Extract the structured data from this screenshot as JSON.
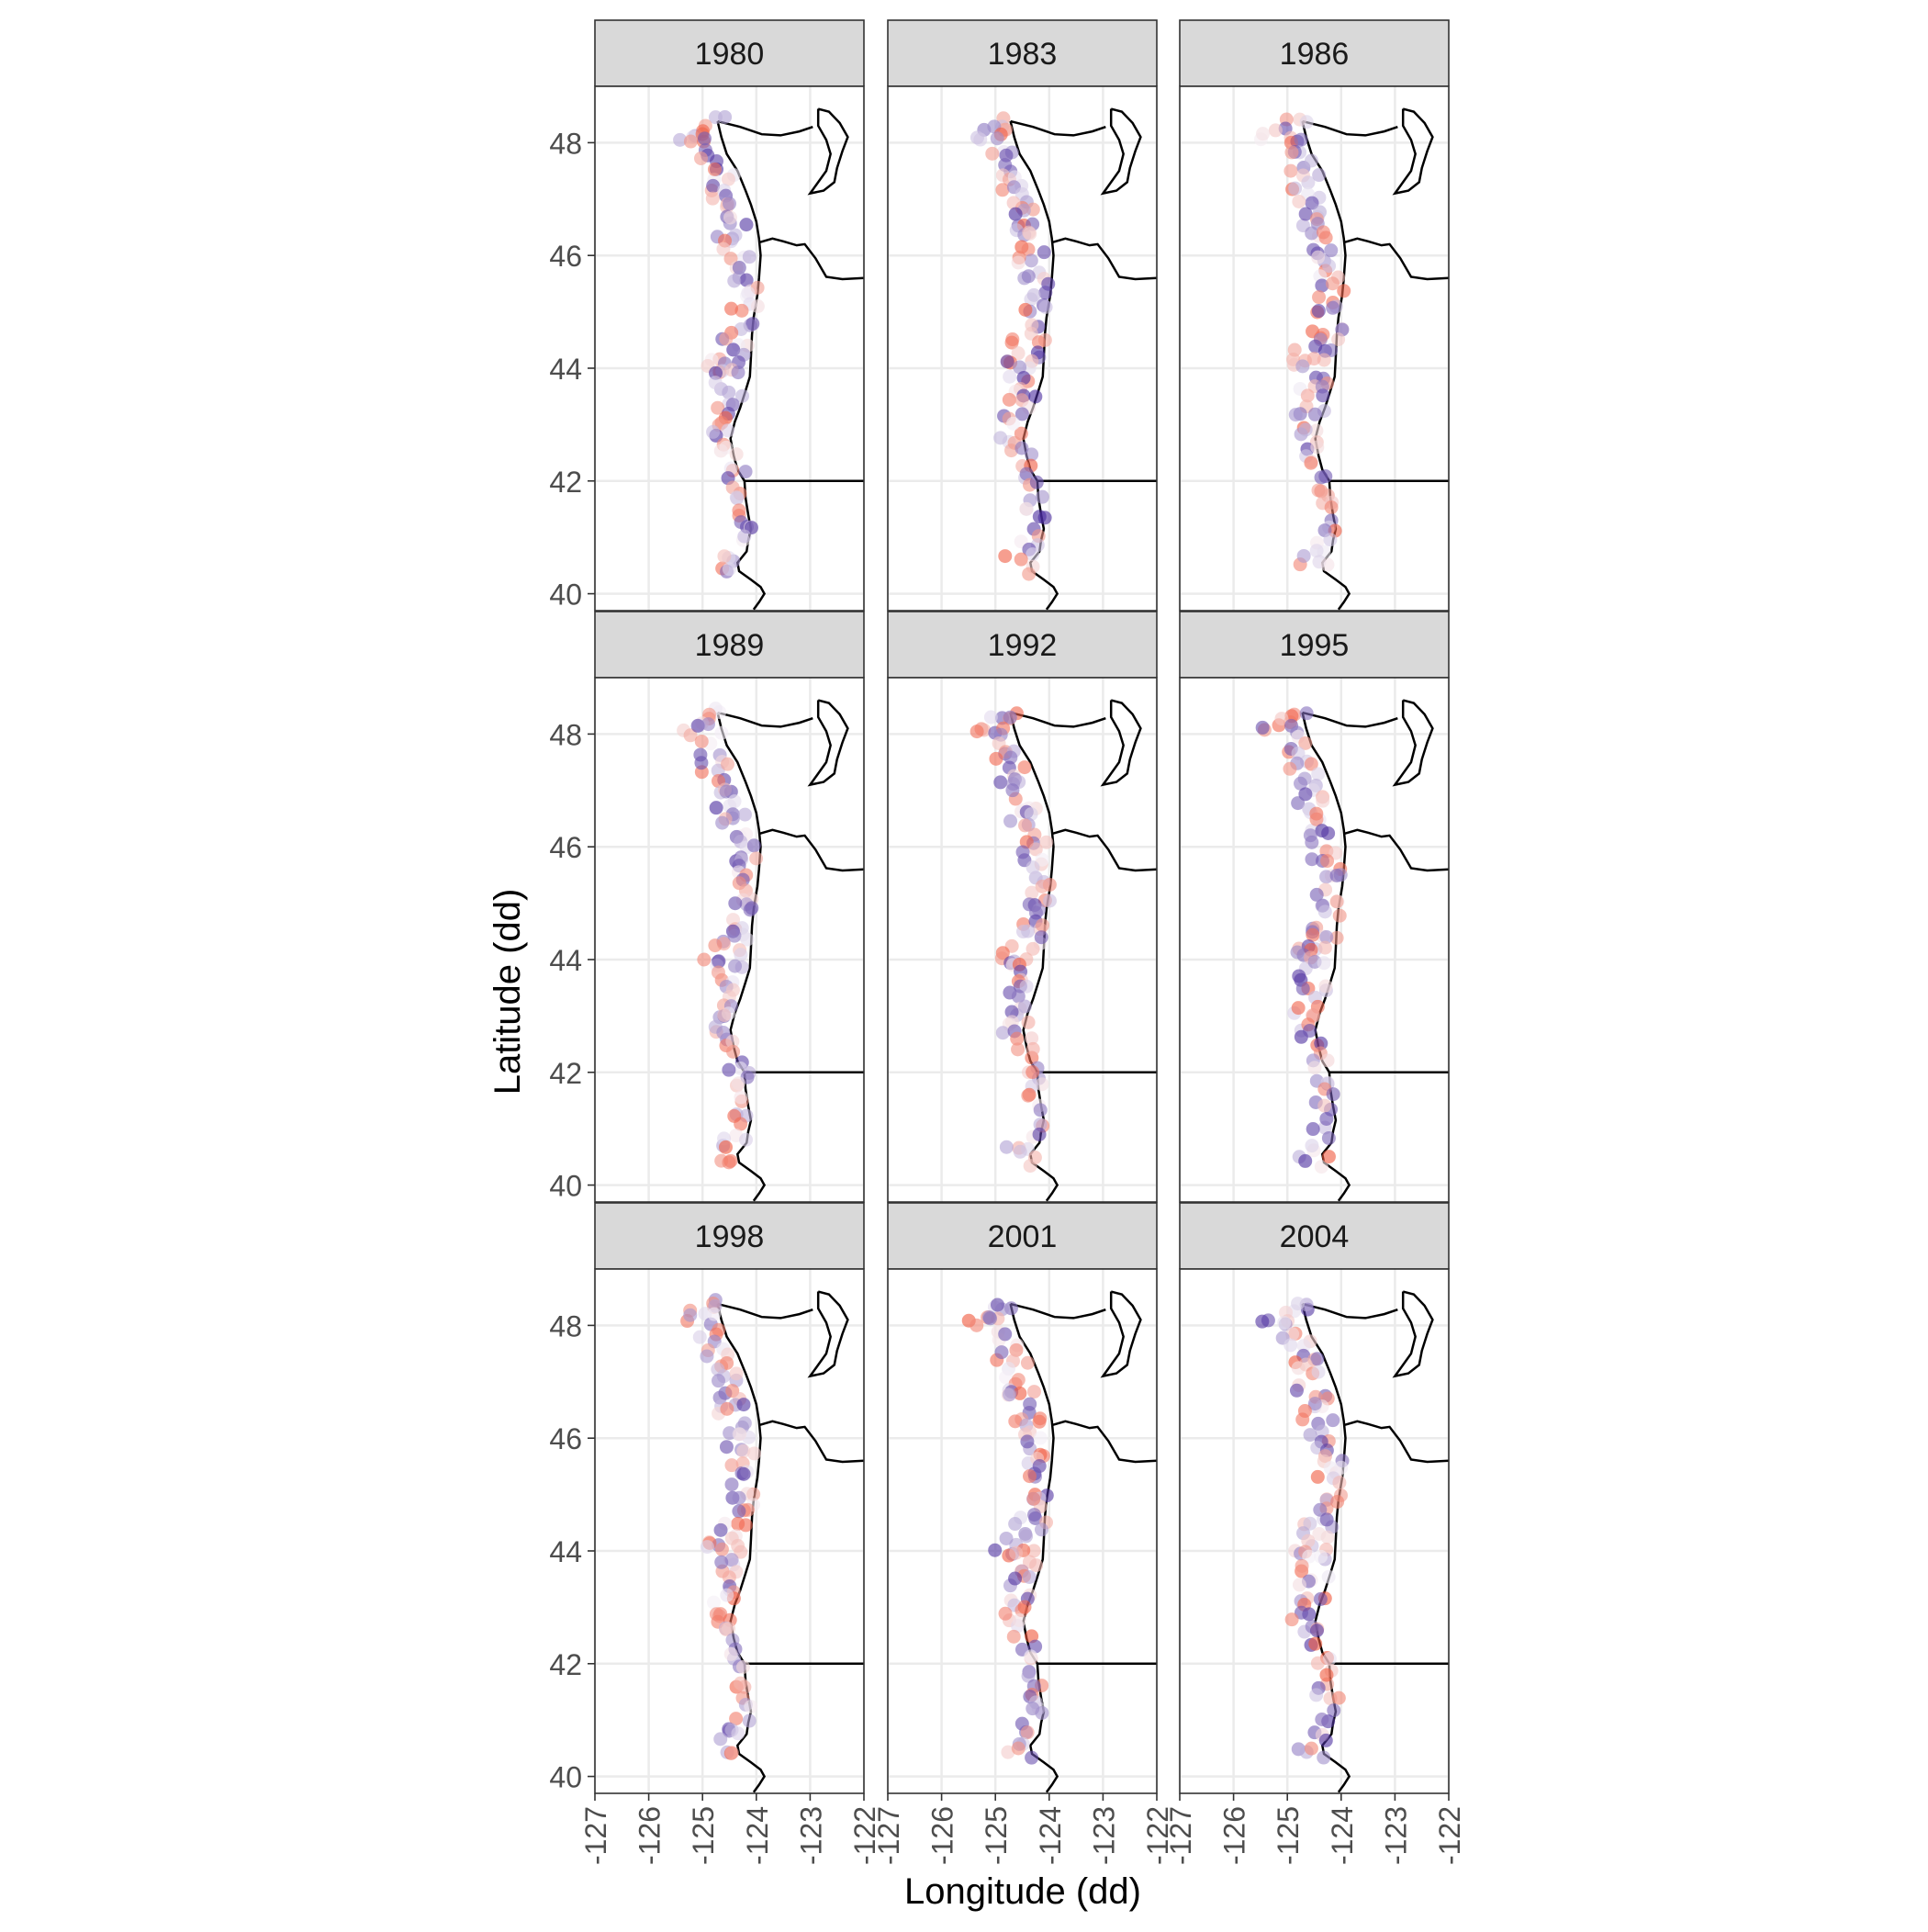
{
  "chart_data": {
    "type": "scatter",
    "facet_by": "year",
    "facets": [
      "1980",
      "1983",
      "1986",
      "1989",
      "1992",
      "1995",
      "1998",
      "2001",
      "2004"
    ],
    "xlabel": "Longitude (dd)",
    "ylabel": "Latitude (dd)",
    "xlim": [
      -127,
      -122
    ],
    "ylim": [
      39.7,
      49.0
    ],
    "x_ticks": [
      -127,
      -126,
      -125,
      -124,
      -123,
      -122
    ],
    "y_ticks": [
      40,
      42,
      44,
      46,
      48
    ],
    "x_tick_labels": [
      "-127",
      "-126",
      "-125",
      "-124",
      "-123",
      "-122"
    ],
    "y_tick_labels": [
      "40",
      "42",
      "44",
      "46",
      "48"
    ],
    "grid": true,
    "legend": "none",
    "colors": {
      "low": "#4a2c9e",
      "mid": "#f5f0f7",
      "high": "#f0563a",
      "strip_fill": "#d9d9d9",
      "grid": "#ebebeb",
      "coast": "#000000"
    },
    "coastline": [
      [
        -124.05,
        39.72
      ],
      [
        -123.95,
        39.85
      ],
      [
        -123.85,
        40.0
      ],
      [
        -123.92,
        40.12
      ],
      [
        -124.1,
        40.25
      ],
      [
        -124.32,
        40.4
      ],
      [
        -124.35,
        40.55
      ],
      [
        -124.18,
        40.75
      ],
      [
        -124.15,
        40.95
      ],
      [
        -124.1,
        41.15
      ],
      [
        -124.15,
        41.4
      ],
      [
        -124.2,
        41.7
      ],
      [
        -124.22,
        42.0
      ],
      [
        -124.35,
        42.2
      ],
      [
        -124.42,
        42.45
      ],
      [
        -124.48,
        42.75
      ],
      [
        -124.4,
        43.05
      ],
      [
        -124.3,
        43.3
      ],
      [
        -124.2,
        43.6
      ],
      [
        -124.12,
        43.85
      ],
      [
        -124.1,
        44.2
      ],
      [
        -124.08,
        44.6
      ],
      [
        -124.05,
        44.9
      ],
      [
        -123.98,
        45.3
      ],
      [
        -123.95,
        45.6
      ],
      [
        -123.92,
        46.0
      ],
      [
        -123.95,
        46.3
      ],
      [
        -124.0,
        46.6
      ],
      [
        -124.1,
        46.9
      ],
      [
        -124.2,
        47.15
      ],
      [
        -124.35,
        47.5
      ],
      [
        -124.55,
        47.8
      ],
      [
        -124.65,
        48.1
      ],
      [
        -124.72,
        48.38
      ]
    ],
    "state_borders": [
      [
        [
          -123.95,
          46.23
        ],
        [
          -123.7,
          46.3
        ],
        [
          -123.5,
          46.25
        ],
        [
          -123.25,
          46.18
        ],
        [
          -123.1,
          46.2
        ],
        [
          -122.9,
          45.95
        ],
        [
          -122.7,
          45.62
        ],
        [
          -122.4,
          45.58
        ],
        [
          -122.0,
          45.6
        ]
      ],
      [
        [
          -124.22,
          42.0
        ],
        [
          -122.0,
          42.0
        ]
      ],
      [
        [
          -124.72,
          48.38
        ],
        [
          -124.3,
          48.28
        ],
        [
          -123.9,
          48.15
        ],
        [
          -123.55,
          48.13
        ],
        [
          -123.2,
          48.2
        ],
        [
          -122.95,
          48.28
        ]
      ]
    ],
    "puget_sound": [
      [
        -122.85,
        48.6
      ],
      [
        -122.65,
        48.55
      ],
      [
        -122.45,
        48.35
      ],
      [
        -122.3,
        48.1
      ],
      [
        -122.4,
        47.85
      ],
      [
        -122.5,
        47.55
      ],
      [
        -122.55,
        47.3
      ],
      [
        -122.75,
        47.15
      ],
      [
        -123.0,
        47.1
      ],
      [
        -122.85,
        47.3
      ],
      [
        -122.7,
        47.5
      ],
      [
        -122.62,
        47.8
      ],
      [
        -122.7,
        48.05
      ],
      [
        -122.85,
        48.3
      ],
      [
        -122.85,
        48.6
      ]
    ],
    "samples": [
      {
        "x": -124.72,
        "y": 48.35,
        "v": 0.55
      },
      {
        "x": -124.9,
        "y": 48.3,
        "v": 0.7
      },
      {
        "x": -125.1,
        "y": 48.2,
        "v": 0.3
      },
      {
        "x": -125.35,
        "y": 48.1,
        "v": 0.6
      },
      {
        "x": -124.95,
        "y": 48.1,
        "v": 0.9
      },
      {
        "x": -124.8,
        "y": 47.95,
        "v": 0.2
      },
      {
        "x": -124.95,
        "y": 47.75,
        "v": 0.8
      },
      {
        "x": -124.7,
        "y": 47.6,
        "v": 0.1
      },
      {
        "x": -124.85,
        "y": 47.45,
        "v": 0.65
      },
      {
        "x": -124.55,
        "y": 47.35,
        "v": 0.35
      },
      {
        "x": -124.75,
        "y": 47.2,
        "v": 0.95
      },
      {
        "x": -124.5,
        "y": 47.05,
        "v": 0.15
      },
      {
        "x": -124.65,
        "y": 46.9,
        "v": 0.75
      },
      {
        "x": -124.4,
        "y": 46.8,
        "v": 0.45
      },
      {
        "x": -124.6,
        "y": 46.65,
        "v": 0.05
      },
      {
        "x": -124.35,
        "y": 46.55,
        "v": 0.85
      },
      {
        "x": -124.55,
        "y": 46.4,
        "v": 0.25
      },
      {
        "x": -124.3,
        "y": 46.3,
        "v": 0.6
      },
      {
        "x": -124.45,
        "y": 46.15,
        "v": 0.9
      },
      {
        "x": -124.2,
        "y": 46.0,
        "v": 0.2
      },
      {
        "x": -124.4,
        "y": 45.85,
        "v": 0.7
      },
      {
        "x": -124.15,
        "y": 45.7,
        "v": 0.4
      },
      {
        "x": -124.35,
        "y": 45.55,
        "v": 0.1
      },
      {
        "x": -124.1,
        "y": 45.4,
        "v": 0.8
      },
      {
        "x": -124.3,
        "y": 45.25,
        "v": 0.55
      },
      {
        "x": -124.1,
        "y": 45.1,
        "v": 0.3
      },
      {
        "x": -124.3,
        "y": 44.95,
        "v": 0.95
      },
      {
        "x": -124.15,
        "y": 44.8,
        "v": 0.15
      },
      {
        "x": -124.4,
        "y": 44.65,
        "v": 0.65
      },
      {
        "x": -124.2,
        "y": 44.5,
        "v": 0.5
      },
      {
        "x": -124.55,
        "y": 44.4,
        "v": 0.85
      },
      {
        "x": -124.3,
        "y": 44.3,
        "v": 0.05
      },
      {
        "x": -124.7,
        "y": 44.2,
        "v": 0.6
      },
      {
        "x": -124.45,
        "y": 44.1,
        "v": 0.35
      },
      {
        "x": -124.85,
        "y": 44.05,
        "v": 0.75
      },
      {
        "x": -124.6,
        "y": 43.95,
        "v": 0.2
      },
      {
        "x": -124.4,
        "y": 43.85,
        "v": 0.9
      },
      {
        "x": -124.65,
        "y": 43.7,
        "v": 0.45
      },
      {
        "x": -124.4,
        "y": 43.55,
        "v": 0.1
      },
      {
        "x": -124.6,
        "y": 43.4,
        "v": 0.7
      },
      {
        "x": -124.45,
        "y": 43.25,
        "v": 0.3
      },
      {
        "x": -124.7,
        "y": 43.1,
        "v": 0.85
      },
      {
        "x": -124.55,
        "y": 42.95,
        "v": 0.55
      },
      {
        "x": -124.75,
        "y": 42.8,
        "v": 0.25
      },
      {
        "x": -124.6,
        "y": 42.65,
        "v": 0.8
      },
      {
        "x": -124.5,
        "y": 42.5,
        "v": 0.4
      },
      {
        "x": -124.4,
        "y": 42.3,
        "v": 0.65
      },
      {
        "x": -124.35,
        "y": 42.1,
        "v": 0.15
      },
      {
        "x": -124.3,
        "y": 41.9,
        "v": 0.9
      },
      {
        "x": -124.25,
        "y": 41.7,
        "v": 0.35
      },
      {
        "x": -124.3,
        "y": 41.5,
        "v": 0.6
      },
      {
        "x": -124.2,
        "y": 41.3,
        "v": 0.05
      },
      {
        "x": -124.25,
        "y": 41.1,
        "v": 0.75
      },
      {
        "x": -124.35,
        "y": 40.9,
        "v": 0.5
      },
      {
        "x": -124.45,
        "y": 40.7,
        "v": 0.2
      },
      {
        "x": -124.65,
        "y": 40.55,
        "v": 0.85
      },
      {
        "x": -124.4,
        "y": 40.45,
        "v": 0.45
      }
    ]
  }
}
